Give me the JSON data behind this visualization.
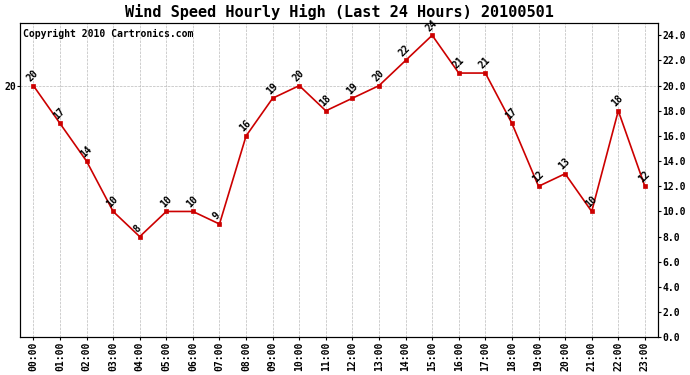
{
  "title": "Wind Speed Hourly High (Last 24 Hours) 20100501",
  "copyright_text": "Copyright 2010 Cartronics.com",
  "hours": [
    "00:00",
    "01:00",
    "02:00",
    "03:00",
    "04:00",
    "05:00",
    "06:00",
    "07:00",
    "08:00",
    "09:00",
    "10:00",
    "11:00",
    "12:00",
    "13:00",
    "14:00",
    "15:00",
    "16:00",
    "17:00",
    "18:00",
    "19:00",
    "20:00",
    "21:00",
    "22:00",
    "23:00"
  ],
  "values": [
    20,
    17,
    14,
    10,
    8,
    10,
    10,
    9,
    16,
    19,
    20,
    18,
    19,
    20,
    22,
    24,
    21,
    21,
    17,
    12,
    13,
    10,
    18,
    12
  ],
  "ylim": [
    0.0,
    25.0
  ],
  "right_yticks": [
    0.0,
    2.0,
    4.0,
    6.0,
    8.0,
    10.0,
    12.0,
    14.0,
    16.0,
    18.0,
    20.0,
    22.0,
    24.0
  ],
  "line_color": "#cc0000",
  "marker_color": "#cc0000",
  "bg_color": "#ffffff",
  "grid_color": "#bbbbbb",
  "title_fontsize": 11,
  "tick_fontsize": 7,
  "annotation_fontsize": 7,
  "copyright_fontsize": 7
}
